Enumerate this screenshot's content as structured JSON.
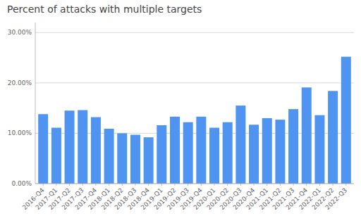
{
  "chart_data": {
    "type": "bar",
    "title": "Percent of attacks with multiple targets",
    "categories": [
      "2016-Q4",
      "2017-Q1",
      "2017-Q2",
      "2017-Q3",
      "2017-Q4",
      "2018-Q1",
      "2018-Q2",
      "2018-Q3",
      "2018-Q4",
      "2019-Q1",
      "2019-Q2",
      "2019-Q3",
      "2019-Q4",
      "2020-Q1",
      "2020-Q2",
      "2020-Q3",
      "2020-Q4",
      "2021-Q1",
      "2021-Q2",
      "2021-Q3",
      "2021-Q4",
      "2022-Q1",
      "2022-Q2",
      "2022-Q3"
    ],
    "values": [
      0.138,
      0.111,
      0.145,
      0.146,
      0.132,
      0.109,
      0.1,
      0.097,
      0.092,
      0.116,
      0.133,
      0.122,
      0.133,
      0.111,
      0.122,
      0.155,
      0.117,
      0.13,
      0.127,
      0.148,
      0.191,
      0.136,
      0.184,
      0.252
    ],
    "color": "#4f94f0",
    "ylim": [
      0,
      0.32
    ],
    "yticks": [
      {
        "value": 0.0,
        "label": "0.00%"
      },
      {
        "value": 0.1,
        "label": "10.00%"
      },
      {
        "value": 0.2,
        "label": "20.00%"
      },
      {
        "value": 0.3,
        "label": "30.00%"
      }
    ],
    "grid": true
  }
}
